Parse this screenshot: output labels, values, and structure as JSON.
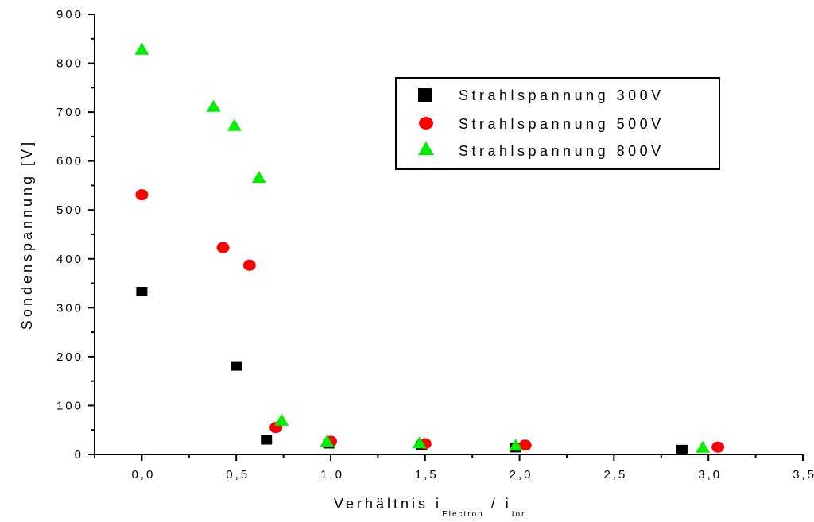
{
  "chart_data": {
    "type": "scatter",
    "xlabel": {
      "prefix": "Verhältnis i",
      "sub1": "Electron",
      "mid": " / i",
      "sub2": "Ion"
    },
    "ylabel": "Sondenspannung [V]",
    "xlim": [
      -0.25,
      3.5
    ],
    "ylim": [
      0,
      900
    ],
    "x_ticks": [
      0.0,
      0.5,
      1.0,
      1.5,
      2.0,
      2.5,
      3.0,
      3.5
    ],
    "x_tick_labels": [
      "0,0",
      "0,5",
      "1,0",
      "1,5",
      "2,0",
      "2,5",
      "3,0",
      "3,5"
    ],
    "y_ticks": [
      0,
      100,
      200,
      300,
      400,
      500,
      600,
      700,
      800,
      900
    ],
    "y_tick_labels": [
      "0",
      "100",
      "200",
      "300",
      "400",
      "500",
      "600",
      "700",
      "800",
      "900"
    ],
    "grid": false,
    "legend": "top-right",
    "series": [
      {
        "name": "Strahlspannung 300V",
        "marker": "square",
        "color": "#000000",
        "x": [
          0.0,
          0.5,
          0.66,
          0.99,
          1.48,
          1.98,
          2.86
        ],
        "y": [
          333,
          181,
          30,
          22,
          18,
          14,
          10
        ]
      },
      {
        "name": "Strahlspannung 500V",
        "marker": "circle",
        "color": "#ff0000",
        "x": [
          0.0,
          0.43,
          0.57,
          0.71,
          1.0,
          1.5,
          2.03,
          3.05
        ],
        "y": [
          531,
          423,
          387,
          55,
          27,
          22,
          19,
          15
        ]
      },
      {
        "name": "Strahlspannung 800V",
        "marker": "triangle",
        "color": "#00ee00",
        "x": [
          0.0,
          0.38,
          0.49,
          0.62,
          0.74,
          0.98,
          1.47,
          1.98,
          2.97
        ],
        "y": [
          829,
          712,
          673,
          567,
          70,
          27,
          24,
          19,
          15
        ]
      }
    ]
  }
}
